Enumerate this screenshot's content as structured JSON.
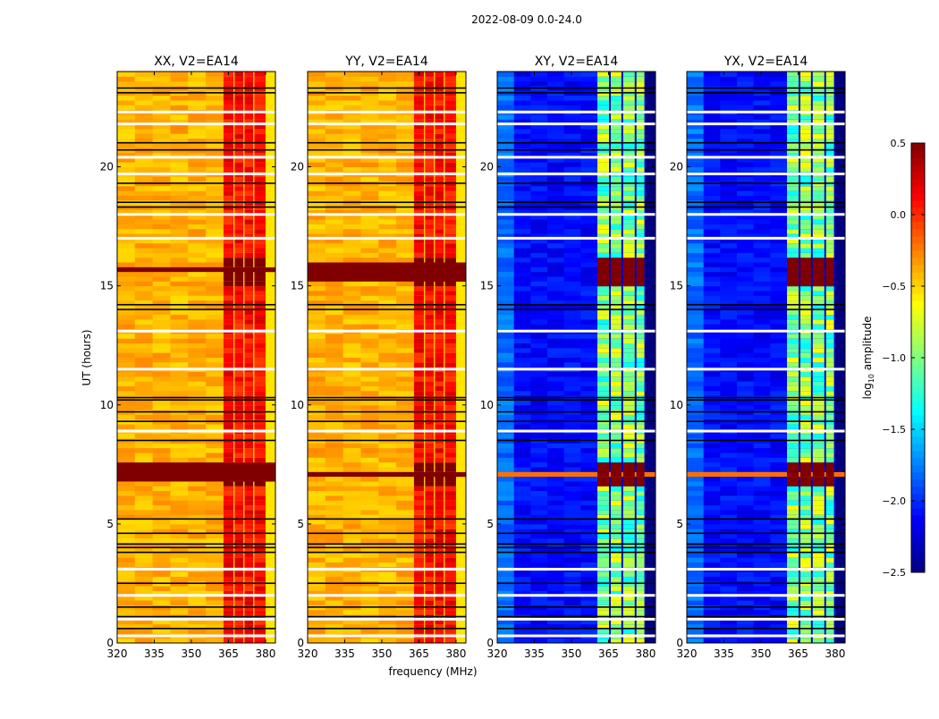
{
  "chart_data": {
    "type": "heatmap",
    "title": "2022-08-09 0.0-24.0",
    "xlabel": "frequency (MHz)",
    "ylabel": "UT (hours)",
    "xlim": [
      320,
      384
    ],
    "ylim": [
      0,
      24
    ],
    "xticks": [
      "320",
      "335",
      "350",
      "365",
      "380"
    ],
    "xtick_values": [
      320,
      335,
      350,
      365,
      380
    ],
    "yticks": [
      "0",
      "5",
      "10",
      "15",
      "20"
    ],
    "ytick_values": [
      0,
      5,
      10,
      15,
      20
    ],
    "colorbar": {
      "label_main": "log",
      "label_sub": "10",
      "label_rest": " amplitude",
      "range": [
        -2.5,
        0.5
      ],
      "ticks": [
        "0.5",
        "0.0",
        "−0.5",
        "−1.0",
        "−1.5",
        "−2.0",
        "−2.5"
      ],
      "tick_values": [
        0.5,
        0.0,
        -0.5,
        -1.0,
        -1.5,
        -2.0,
        -2.5
      ],
      "colormap": "jet"
    },
    "flagged_black_hours": [
      23.3,
      23.1,
      21.0,
      20.7,
      19.3,
      18.5,
      18.3,
      14.2,
      14.0,
      10.3,
      10.2,
      9.7,
      9.3,
      8.5,
      5.2,
      4.6,
      4.15,
      4.0,
      3.8,
      2.5,
      1.5,
      1.1,
      0.6
    ],
    "flagged_white_hours": [
      22.3,
      21.8,
      20.4,
      19.7,
      18.0,
      17.0,
      13.1,
      11.5,
      8.9,
      3.1,
      2.0,
      1.0,
      0.3
    ],
    "high_intervals_hours": [
      [
        15.1,
        16.2
      ],
      [
        6.7,
        7.7
      ]
    ],
    "panels": [
      {
        "title": "XX, V2=EA14",
        "background": -0.4,
        "band_value": 0.1,
        "high_band_value": 0.5,
        "high_background_value": 0.5,
        "high_background_intervals": [
          [
            6.75,
            7.6
          ],
          [
            15.6,
            15.8
          ]
        ],
        "edge_value": -0.4,
        "segments": [
          [
            363,
            367
          ],
          [
            367.5,
            371
          ],
          [
            371.5,
            375
          ],
          [
            375.5,
            380
          ]
        ]
      },
      {
        "title": "YY, V2=EA14",
        "background": -0.4,
        "band_value": 0.1,
        "high_band_value": 0.5,
        "high_background_value": 0.5,
        "high_background_intervals": [
          [
            15.3,
            15.95
          ],
          [
            7.0,
            7.3
          ]
        ],
        "edge_value": -0.4,
        "segments": [
          [
            363,
            367
          ],
          [
            367.5,
            371
          ],
          [
            371.5,
            375
          ],
          [
            375.5,
            380
          ]
        ]
      },
      {
        "title": "XY, V2=EA14",
        "background": -2.1,
        "band_value": -1.0,
        "high_band_value": 0.5,
        "high_background_value": -0.2,
        "high_background_intervals": [
          [
            15.55,
            15.7
          ],
          [
            7.1,
            7.3
          ]
        ],
        "edge_value": -2.5,
        "segments": [
          [
            360.5,
            365.2
          ],
          [
            365.9,
            370.2
          ],
          [
            370.9,
            375.6
          ],
          [
            376.3,
            379.5
          ]
        ]
      },
      {
        "title": "YX, V2=EA14",
        "background": -2.1,
        "band_value": -1.0,
        "high_band_value": 0.5,
        "high_background_value": -0.2,
        "high_background_intervals": [
          [
            15.55,
            15.7
          ],
          [
            7.1,
            7.3
          ]
        ],
        "edge_value": -2.5,
        "segments": [
          [
            360.5,
            365.2
          ],
          [
            365.9,
            370.2
          ],
          [
            370.9,
            375.6
          ],
          [
            376.3,
            379.5
          ]
        ]
      }
    ]
  }
}
